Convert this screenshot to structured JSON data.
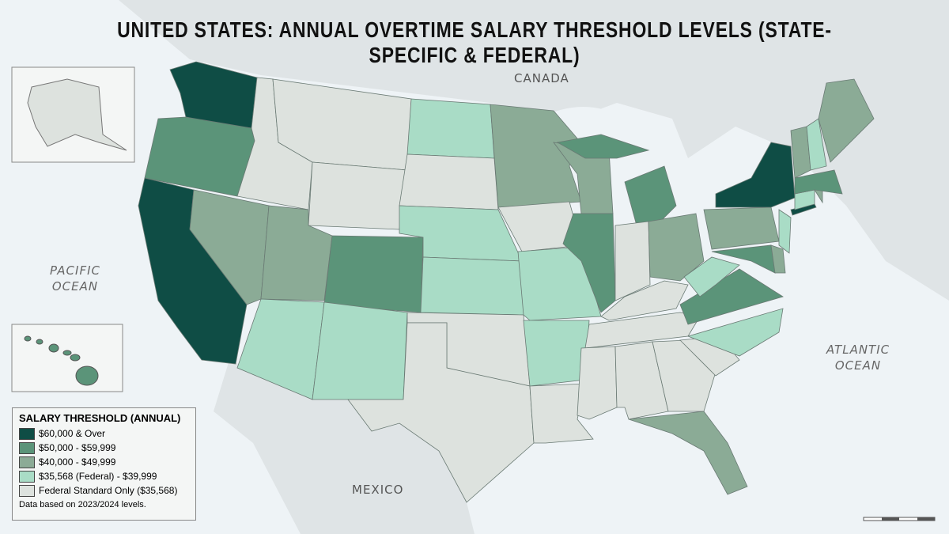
{
  "title": "UNITED STATES: ANNUAL OVERTIME SALARY THRESHOLD LEVELS (STATE-SPECIFIC & FEDERAL)",
  "labels": {
    "canada": "CANADA",
    "mexico": "MEXICO",
    "pacific": "PACIFIC OCEAN",
    "atlantic": "ATLANTIC OCEAN"
  },
  "legend": {
    "title": "SALARY THRESHOLD (ANNUAL)",
    "items": [
      {
        "label": "$60,000 & Over",
        "color": "#0f4d45"
      },
      {
        "label": "$50,000 - $59,999",
        "color": "#5b9479"
      },
      {
        "label": "$40,000 - $49,999",
        "color": "#8bab96"
      },
      {
        "label": "$35,568 (Federal) - $39,999",
        "color": "#a9dcc6"
      },
      {
        "label": "Federal Standard Only ($35,568)",
        "color": "#dde2de"
      }
    ],
    "note": "Data based on 2023/2024 levels."
  }
}
